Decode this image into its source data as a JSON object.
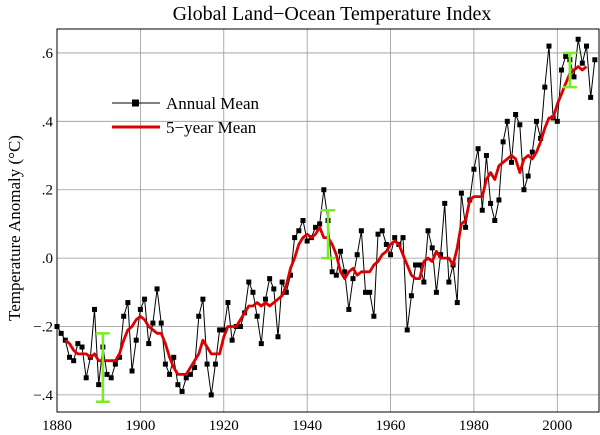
{
  "chart_data": {
    "type": "line",
    "title": "Global Land−Ocean Temperature Index",
    "ylabel": "Temperature Anomaly (°C)",
    "xlabel": "",
    "xlim": [
      1880,
      2010
    ],
    "ylim": [
      -0.45,
      0.67
    ],
    "x_ticks": [
      1880,
      1900,
      1920,
      1940,
      1960,
      1980,
      2000
    ],
    "x_tick_labels": [
      "1880",
      "1900",
      "1920",
      "1940",
      "1960",
      "1980",
      "2000"
    ],
    "y_ticks": [
      -0.4,
      -0.2,
      0.0,
      0.2,
      0.4,
      0.6
    ],
    "y_tick_labels": [
      "−.4",
      "−.2",
      ".0",
      ".2",
      ".4",
      ".6"
    ],
    "grid": true,
    "legend_position": "upper-left",
    "colors": {
      "annual": "#000000",
      "five_year": "#dd0000",
      "error_bars": "#77ee22",
      "grid": "#999999"
    },
    "series": [
      {
        "name": "Annual Mean",
        "style": "line-with-square-markers",
        "x": [
          1880,
          1881,
          1882,
          1883,
          1884,
          1885,
          1886,
          1887,
          1888,
          1889,
          1890,
          1891,
          1892,
          1893,
          1894,
          1895,
          1896,
          1897,
          1898,
          1899,
          1900,
          1901,
          1902,
          1903,
          1904,
          1905,
          1906,
          1907,
          1908,
          1909,
          1910,
          1911,
          1912,
          1913,
          1914,
          1915,
          1916,
          1917,
          1918,
          1919,
          1920,
          1921,
          1922,
          1923,
          1924,
          1925,
          1926,
          1927,
          1928,
          1929,
          1930,
          1931,
          1932,
          1933,
          1934,
          1935,
          1936,
          1937,
          1938,
          1939,
          1940,
          1941,
          1942,
          1943,
          1944,
          1945,
          1946,
          1947,
          1948,
          1949,
          1950,
          1951,
          1952,
          1953,
          1954,
          1955,
          1956,
          1957,
          1958,
          1959,
          1960,
          1961,
          1962,
          1963,
          1964,
          1965,
          1966,
          1967,
          1968,
          1969,
          1970,
          1971,
          1972,
          1973,
          1974,
          1975,
          1976,
          1977,
          1978,
          1979,
          1980,
          1981,
          1982,
          1983,
          1984,
          1985,
          1986,
          1987,
          1988,
          1989,
          1990,
          1991,
          1992,
          1993,
          1994,
          1995,
          1996,
          1997,
          1998,
          1999,
          2000,
          2001,
          2002,
          2003,
          2004,
          2005,
          2006,
          2007,
          2008,
          2009
        ],
        "y": [
          -0.2,
          -0.22,
          -0.24,
          -0.29,
          -0.3,
          -0.25,
          -0.26,
          -0.35,
          -0.29,
          -0.15,
          -0.37,
          -0.26,
          -0.34,
          -0.35,
          -0.31,
          -0.29,
          -0.17,
          -0.13,
          -0.33,
          -0.24,
          -0.15,
          -0.12,
          -0.25,
          -0.19,
          -0.09,
          -0.19,
          -0.31,
          -0.34,
          -0.29,
          -0.37,
          -0.39,
          -0.35,
          -0.34,
          -0.32,
          -0.17,
          -0.12,
          -0.31,
          -0.4,
          -0.31,
          -0.21,
          -0.21,
          -0.13,
          -0.24,
          -0.2,
          -0.2,
          -0.16,
          -0.07,
          -0.1,
          -0.17,
          -0.25,
          -0.12,
          -0.06,
          -0.09,
          -0.23,
          -0.07,
          -0.1,
          -0.05,
          0.06,
          0.08,
          0.11,
          0.05,
          0.06,
          0.09,
          0.1,
          0.2,
          0.11,
          -0.04,
          -0.05,
          0.02,
          -0.04,
          -0.15,
          -0.06,
          0.01,
          0.08,
          -0.1,
          -0.1,
          -0.17,
          0.07,
          0.08,
          0.04,
          0.01,
          0.06,
          0.04,
          0.06,
          -0.21,
          -0.11,
          -0.02,
          -0.02,
          -0.07,
          0.08,
          0.03,
          -0.1,
          0.01,
          0.16,
          -0.07,
          -0.02,
          -0.13,
          0.19,
          0.09,
          0.17,
          0.26,
          0.32,
          0.14,
          0.3,
          0.16,
          0.11,
          0.17,
          0.34,
          0.4,
          0.28,
          0.42,
          0.39,
          0.2,
          0.24,
          0.31,
          0.4,
          0.35,
          0.5,
          0.62,
          0.41,
          0.4,
          0.55,
          0.59,
          0.58,
          0.53,
          0.64,
          0.57,
          0.62,
          0.47,
          0.58
        ]
      },
      {
        "name": "5−year Mean",
        "style": "line",
        "x": [
          1882,
          1883,
          1884,
          1885,
          1886,
          1887,
          1888,
          1889,
          1890,
          1891,
          1892,
          1893,
          1894,
          1895,
          1896,
          1897,
          1898,
          1899,
          1900,
          1901,
          1902,
          1903,
          1904,
          1905,
          1906,
          1907,
          1908,
          1909,
          1910,
          1911,
          1912,
          1913,
          1914,
          1915,
          1916,
          1917,
          1918,
          1919,
          1920,
          1921,
          1922,
          1923,
          1924,
          1925,
          1926,
          1927,
          1928,
          1929,
          1930,
          1931,
          1932,
          1933,
          1934,
          1935,
          1936,
          1937,
          1938,
          1939,
          1940,
          1941,
          1942,
          1943,
          1944,
          1945,
          1946,
          1947,
          1948,
          1949,
          1950,
          1951,
          1952,
          1953,
          1954,
          1955,
          1956,
          1957,
          1958,
          1959,
          1960,
          1961,
          1962,
          1963,
          1964,
          1965,
          1966,
          1967,
          1968,
          1969,
          1970,
          1971,
          1972,
          1973,
          1974,
          1975,
          1976,
          1977,
          1978,
          1979,
          1980,
          1981,
          1982,
          1983,
          1984,
          1985,
          1986,
          1987,
          1988,
          1989,
          1990,
          1991,
          1992,
          1993,
          1994,
          1995,
          1996,
          1997,
          1998,
          1999,
          2000,
          2001,
          2002,
          2003,
          2004,
          2005,
          2006,
          2007
        ],
        "y": [
          -0.24,
          -0.25,
          -0.27,
          -0.28,
          -0.28,
          -0.28,
          -0.29,
          -0.28,
          -0.3,
          -0.3,
          -0.3,
          -0.3,
          -0.3,
          -0.28,
          -0.24,
          -0.21,
          -0.2,
          -0.18,
          -0.17,
          -0.18,
          -0.2,
          -0.21,
          -0.22,
          -0.22,
          -0.25,
          -0.29,
          -0.32,
          -0.34,
          -0.34,
          -0.34,
          -0.32,
          -0.3,
          -0.28,
          -0.24,
          -0.26,
          -0.28,
          -0.28,
          -0.28,
          -0.23,
          -0.2,
          -0.2,
          -0.2,
          -0.18,
          -0.16,
          -0.14,
          -0.14,
          -0.13,
          -0.14,
          -0.13,
          -0.14,
          -0.13,
          -0.12,
          -0.11,
          -0.08,
          -0.03,
          0.0,
          0.04,
          0.06,
          0.07,
          0.06,
          0.07,
          0.09,
          0.06,
          0.06,
          0.04,
          0.01,
          -0.04,
          -0.06,
          -0.04,
          -0.03,
          -0.05,
          -0.04,
          -0.04,
          -0.04,
          -0.02,
          -0.01,
          0.01,
          0.02,
          0.04,
          0.05,
          0.04,
          0.01,
          -0.02,
          -0.05,
          -0.06,
          -0.06,
          -0.01,
          0.0,
          -0.01,
          0.02,
          0.0,
          0.0,
          0.0,
          -0.02,
          0.03,
          0.1,
          0.11,
          0.17,
          0.18,
          0.18,
          0.18,
          0.23,
          0.25,
          0.23,
          0.27,
          0.28,
          0.29,
          0.3,
          0.29,
          0.25,
          0.29,
          0.3,
          0.29,
          0.31,
          0.34,
          0.38,
          0.41,
          0.41,
          0.45,
          0.48,
          0.51,
          0.54,
          0.55,
          0.56,
          0.55,
          0.56
        ]
      }
    ],
    "error_bars": [
      {
        "x": 1891,
        "low": -0.42,
        "high": -0.22
      },
      {
        "x": 1945,
        "low": 0.0,
        "high": 0.14
      },
      {
        "x": 2003,
        "low": 0.5,
        "high": 0.6
      }
    ]
  }
}
